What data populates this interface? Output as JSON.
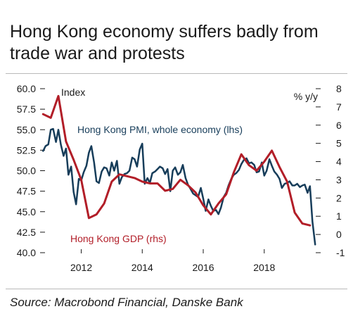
{
  "header": {
    "title": "Hong Kong economy suffers badly from trade war and protests"
  },
  "footer": {
    "source": "Source: Macrobond Financial, Danske Bank"
  },
  "colors": {
    "pmi_series": "#173d5a",
    "gdp_series": "#b21e28",
    "text": "#1a1a1a",
    "rule": "#b9b9b9"
  },
  "chart_data": {
    "type": "line",
    "left_axis": {
      "label": "Index",
      "ylim": [
        40,
        60
      ],
      "ticks": [
        "60.0",
        "57.5",
        "55.0",
        "52.5",
        "50.0",
        "47.5",
        "45.0",
        "42.5",
        "40.0"
      ],
      "tick_values": [
        60,
        57.5,
        55,
        52.5,
        50,
        47.5,
        45,
        42.5,
        40
      ]
    },
    "right_axis": {
      "label": "% y/y",
      "ylim": [
        -1,
        8
      ],
      "ticks": [
        "8",
        "7",
        "6",
        "5",
        "4",
        "3",
        "2",
        "1",
        "0",
        "-1"
      ],
      "tick_values": [
        8,
        7,
        6,
        5,
        4,
        3,
        2,
        1,
        0,
        -1
      ]
    },
    "x_axis": {
      "xlim": [
        2010.65,
        2019.85
      ],
      "ticks": [
        "2012",
        "2014",
        "2016",
        "2018"
      ],
      "tick_values": [
        2012,
        2014,
        2016,
        2018
      ]
    },
    "grid": false,
    "series": [
      {
        "name": "Hong Kong PMI, whole economy (lhs)",
        "axis": "left",
        "x": [
          2010.75,
          2010.83,
          2010.92,
          2011.0,
          2011.08,
          2011.17,
          2011.25,
          2011.33,
          2011.42,
          2011.5,
          2011.58,
          2011.67,
          2011.75,
          2011.83,
          2011.92,
          2012.0,
          2012.08,
          2012.17,
          2012.25,
          2012.33,
          2012.42,
          2012.5,
          2012.58,
          2012.67,
          2012.75,
          2012.83,
          2012.92,
          2013.0,
          2013.08,
          2013.17,
          2013.25,
          2013.33,
          2013.42,
          2013.5,
          2013.58,
          2013.67,
          2013.75,
          2013.83,
          2013.92,
          2014.0,
          2014.08,
          2014.17,
          2014.25,
          2014.33,
          2014.42,
          2014.5,
          2014.58,
          2014.67,
          2014.75,
          2014.83,
          2014.92,
          2015.0,
          2015.08,
          2015.17,
          2015.25,
          2015.33,
          2015.42,
          2015.5,
          2015.58,
          2015.67,
          2015.75,
          2015.83,
          2015.92,
          2016.0,
          2016.08,
          2016.17,
          2016.25,
          2016.33,
          2016.42,
          2016.5,
          2016.58,
          2016.67,
          2016.75,
          2016.83,
          2016.92,
          2017.0,
          2017.08,
          2017.17,
          2017.25,
          2017.33,
          2017.42,
          2017.5,
          2017.58,
          2017.67,
          2017.75,
          2017.83,
          2017.92,
          2018.0,
          2018.08,
          2018.17,
          2018.25,
          2018.33,
          2018.42,
          2018.5,
          2018.58,
          2018.67,
          2018.75,
          2018.83,
          2018.92,
          2019.0,
          2019.08,
          2019.17,
          2019.25,
          2019.33,
          2019.42,
          2019.5,
          2019.58,
          2019.67
        ],
        "values": [
          52.4,
          53.0,
          53.2,
          55.0,
          55.1,
          53.5,
          55.0,
          53.2,
          51.8,
          52.7,
          49.5,
          50.5,
          47.4,
          45.9,
          49.0,
          48.8,
          49.8,
          50.6,
          52.2,
          53.0,
          51.0,
          48.7,
          48.5,
          49.9,
          50.4,
          50.3,
          49.4,
          51.0,
          50.0,
          51.2,
          48.4,
          49.2,
          49.6,
          49.7,
          50.0,
          51.6,
          51.4,
          50.5,
          52.6,
          53.3,
          48.4,
          49.1,
          48.5,
          49.7,
          49.9,
          50.2,
          50.5,
          50.3,
          49.6,
          50.2,
          47.5,
          50.0,
          50.4,
          49.5,
          49.8,
          50.7,
          49.1,
          48.3,
          47.8,
          47.2,
          47.0,
          46.8,
          47.9,
          46.6,
          45.1,
          46.5,
          45.7,
          45.1,
          45.2,
          44.7,
          45.5,
          46.8,
          47.3,
          48.2,
          49.0,
          49.5,
          49.7,
          50.1,
          50.8,
          51.3,
          51.5,
          50.9,
          51.0,
          50.7,
          49.8,
          49.9,
          51.0,
          49.4,
          50.0,
          51.4,
          50.6,
          49.9,
          49.5,
          49.0,
          47.9,
          48.4,
          48.5,
          48.7,
          48.2,
          48.2,
          48.4,
          48.0,
          48.2,
          48.3,
          47.3,
          48.1,
          43.8,
          41.0
        ]
      },
      {
        "name": "Hong Kong GDP (rhs)",
        "axis": "right",
        "x": [
          2010.75,
          2011.0,
          2011.25,
          2011.5,
          2011.75,
          2012.0,
          2012.25,
          2012.5,
          2012.75,
          2013.0,
          2013.25,
          2013.5,
          2013.75,
          2014.0,
          2014.25,
          2014.5,
          2014.75,
          2015.0,
          2015.25,
          2015.5,
          2015.75,
          2016.0,
          2016.25,
          2016.5,
          2016.75,
          2017.0,
          2017.25,
          2017.5,
          2017.75,
          2018.0,
          2018.25,
          2018.5,
          2018.75,
          2019.0,
          2019.25,
          2019.5
        ],
        "values": [
          6.6,
          6.4,
          7.6,
          5.1,
          4.1,
          3.0,
          0.9,
          1.1,
          1.7,
          2.9,
          3.3,
          3.2,
          3.1,
          2.9,
          2.8,
          2.8,
          2.4,
          2.5,
          3.0,
          2.7,
          2.3,
          1.6,
          1.1,
          1.7,
          2.2,
          3.4,
          4.4,
          3.8,
          3.5,
          4.0,
          4.6,
          3.7,
          2.9,
          1.2,
          0.6,
          0.5
        ]
      }
    ],
    "annotations": [
      {
        "text": "Hong Kong PMI, whole economy (lhs)",
        "series": 0
      },
      {
        "text": "Hong Kong GDP (rhs)",
        "series": 1
      }
    ]
  }
}
